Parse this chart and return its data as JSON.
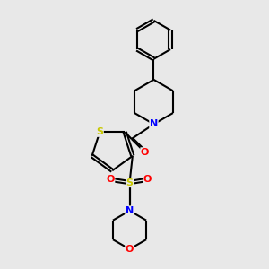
{
  "bg_color": "#e8e8e8",
  "atom_colors": {
    "S_th": "#c8c800",
    "S_sulf": "#c8c800",
    "N": "#0000ff",
    "O": "#ff0000",
    "C": "#000000"
  },
  "bond_color": "#000000",
  "bond_width": 1.5,
  "font_size_atoms": 8,
  "fig_width": 3.0,
  "fig_height": 3.0
}
